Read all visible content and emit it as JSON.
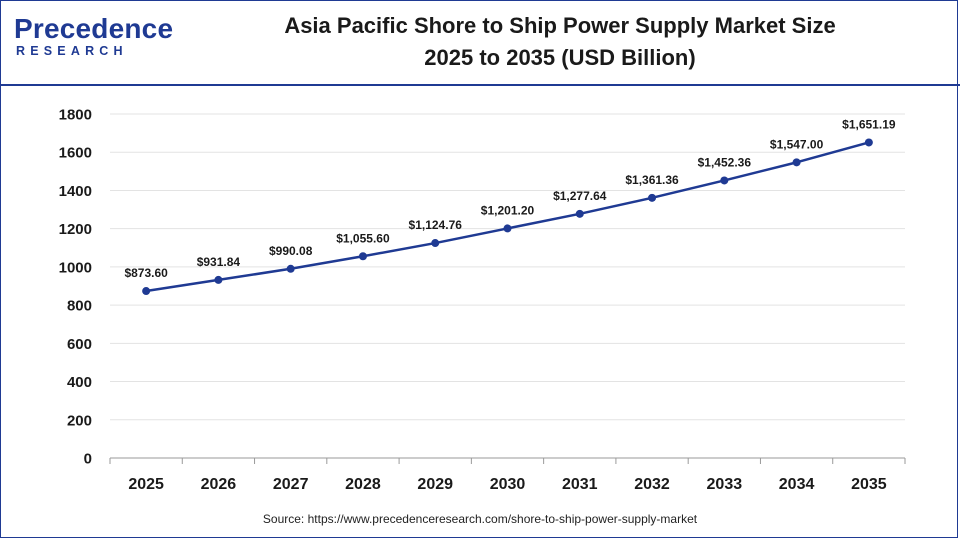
{
  "header": {
    "logo_main": "Precedence",
    "logo_sub": "RESEARCH",
    "title_line1": "Asia Pacific Shore to Ship Power Supply Market Size",
    "title_line2": "2025 to 2035 (USD Billion)"
  },
  "source": "Source: https://www.precedenceresearch.com/shore-to-ship-power-supply-market",
  "colors": {
    "brand": "#1f3a93",
    "line": "#1f3a93",
    "grid": "#e3e3e3"
  },
  "chart_data": {
    "type": "line",
    "title": "Asia Pacific Shore to Ship Power Supply Market Size 2025 to 2035 (USD Billion)",
    "xlabel": "",
    "ylabel": "",
    "ylim": [
      0,
      1800
    ],
    "yticks": [
      0,
      200,
      400,
      600,
      800,
      1000,
      1200,
      1400,
      1600,
      1800
    ],
    "categories": [
      "2025",
      "2026",
      "2027",
      "2028",
      "2029",
      "2030",
      "2031",
      "2032",
      "2033",
      "2034",
      "2035"
    ],
    "series": [
      {
        "values": [
          873.6,
          931.84,
          990.08,
          1055.6,
          1124.76,
          1201.2,
          1277.64,
          1361.36,
          1452.36,
          1547.0,
          1651.19
        ],
        "labels": [
          "$873.60",
          "$931.84",
          "$990.08",
          "$1,055.60",
          "$1,124.76",
          "$1,201.20",
          "$1,277.64",
          "$1,361.36",
          "$1,452.36",
          "$1,547.00",
          "$1,651.19"
        ]
      }
    ],
    "grid": true,
    "legend": "none"
  }
}
